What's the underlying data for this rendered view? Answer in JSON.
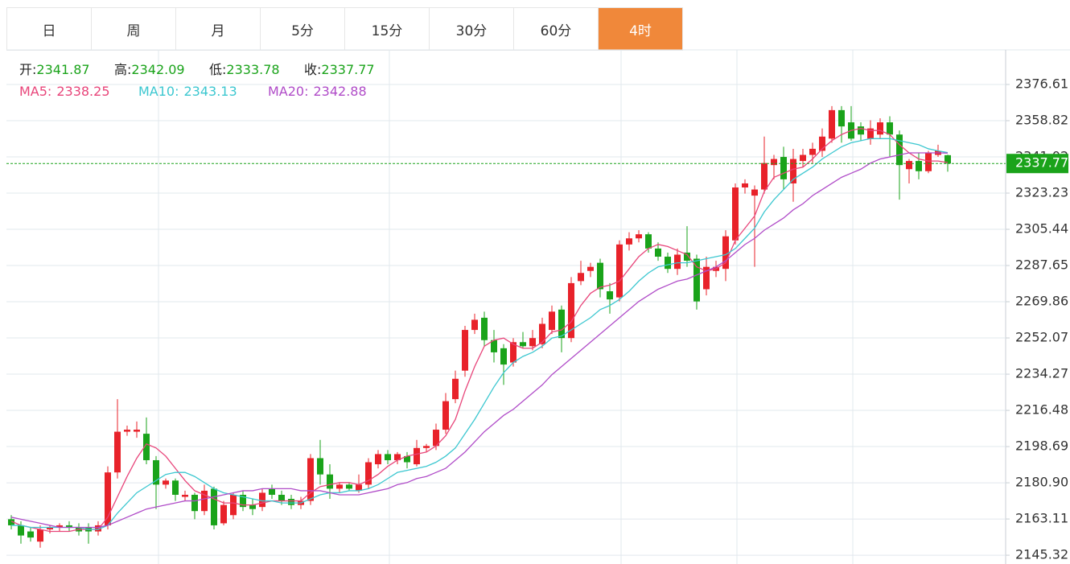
{
  "tabs": [
    "日",
    "周",
    "月",
    "5分",
    "15分",
    "30分",
    "60分",
    "4时"
  ],
  "active_tab": 7,
  "chart_data": {
    "type": "candlestick",
    "ylim": [
      2141.0,
      2393.6
    ],
    "yticks": [
      2145.32,
      2163.11,
      {
        "value": 2180.9,
        "label": "2180.90"
      },
      2198.69,
      2216.48,
      2234.27,
      2252.07,
      2269.86,
      2287.65,
      2305.44,
      2323.23,
      2341.02,
      2358.82,
      2376.61
    ],
    "up_color": "#e8222a",
    "down_color": "#1aa31a",
    "grid": true,
    "ohlc_labels": [
      "开:",
      "高:",
      "低:",
      "收:"
    ],
    "open": [
      2163,
      2160,
      2157,
      2152,
      2158,
      2159,
      2160,
      2159,
      2159,
      2157,
      2160,
      2186,
      2206,
      2206,
      2205,
      2192,
      2180,
      2182,
      2174,
      2175,
      2167,
      2178,
      2161,
      2165,
      2175,
      2170,
      2169,
      2178,
      2175,
      2173,
      2170,
      2172,
      2193,
      2185,
      2178,
      2180,
      2177,
      2180,
      2190,
      2195,
      2192,
      2194,
      2190,
      2198,
      2199,
      2207,
      2222,
      2236,
      2256,
      2262,
      2251,
      2247,
      2240,
      2250,
      2248,
      2249,
      2256,
      2266,
      2252,
      2280,
      2285,
      2289,
      2275,
      2272,
      2298,
      2301,
      2303,
      2296,
      2292,
      2286,
      2294,
      2291,
      2276,
      2285,
      2286,
      2300,
      2326,
      2322,
      2325,
      2337,
      2341,
      2328,
      2339,
      2342,
      2344,
      2350,
      2364,
      2358,
      2356,
      2350,
      2352,
      2358,
      2352,
      2335,
      2339,
      2334,
      2342,
      2341.87
    ],
    "high": [
      2165,
      2162,
      2159,
      2160,
      2160,
      2161,
      2162,
      2161,
      2161,
      2162,
      2189,
      2222,
      2209,
      2211,
      2213,
      2194,
      2183,
      2183,
      2177,
      2176,
      2180,
      2179,
      2172,
      2176,
      2177,
      2173,
      2178,
      2180,
      2177,
      2175,
      2174,
      2195,
      2202,
      2190,
      2181,
      2181,
      2185,
      2193,
      2197,
      2197,
      2196,
      2196,
      2202,
      2200,
      2210,
      2225,
      2236,
      2258,
      2264,
      2265,
      2256,
      2249,
      2252,
      2255,
      2256,
      2262,
      2268,
      2268,
      2282,
      2290,
      2289,
      2291,
      2279,
      2300,
      2304,
      2305,
      2304,
      2299,
      2294,
      2296,
      2307,
      2293,
      2292,
      2290,
      2305,
      2328,
      2330,
      2327,
      2351,
      2342,
      2346,
      2345,
      2345,
      2348,
      2355,
      2366,
      2366,
      2366,
      2358,
      2359,
      2360,
      2361,
      2354,
      2340,
      2343,
      2344,
      2347,
      2342.09
    ],
    "low": [
      2158,
      2151,
      2152,
      2149,
      2156,
      2157,
      2157,
      2155,
      2151,
      2155,
      2158,
      2183,
      2204,
      2203,
      2190,
      2168,
      2178,
      2172,
      2172,
      2163,
      2165,
      2158,
      2160,
      2163,
      2167,
      2165,
      2167,
      2173,
      2170,
      2168,
      2168,
      2170,
      2180,
      2173,
      2176,
      2177,
      2176,
      2178,
      2188,
      2190,
      2190,
      2188,
      2189,
      2196,
      2197,
      2205,
      2220,
      2233,
      2254,
      2248,
      2240,
      2229,
      2238,
      2247,
      2246,
      2247,
      2254,
      2245,
      2250,
      2278,
      2282,
      2272,
      2264,
      2270,
      2295,
      2299,
      2294,
      2290,
      2284,
      2283,
      2287,
      2266,
      2273,
      2282,
      2280,
      2298,
      2323,
      2287,
      2323,
      2330,
      2325,
      2319,
      2336,
      2338,
      2341,
      2348,
      2348,
      2349,
      2349,
      2347,
      2350,
      2341,
      2320,
      2328,
      2330,
      2333,
      2341,
      2333.78
    ],
    "close": [
      2160,
      2155,
      2154,
      2158,
      2159,
      2160,
      2159,
      2157,
      2157,
      2160,
      2186,
      2206,
      2207,
      2207,
      2192,
      2180,
      2182,
      2175,
      2175,
      2167,
      2177,
      2160,
      2170,
      2175,
      2169,
      2168,
      2176,
      2175,
      2172,
      2170,
      2172,
      2193,
      2185,
      2178,
      2180,
      2178,
      2180,
      2191,
      2195,
      2192,
      2195,
      2191,
      2198,
      2199,
      2207,
      2221,
      2232,
      2256,
      2261,
      2251,
      2245,
      2239,
      2250,
      2248,
      2252,
      2259,
      2265,
      2252,
      2279,
      2284,
      2287,
      2276,
      2271,
      2298,
      2301,
      2303,
      2296,
      2292,
      2286,
      2293,
      2290,
      2270,
      2287,
      2287,
      2302,
      2326,
      2328,
      2325,
      2338,
      2340,
      2330,
      2340,
      2342,
      2345,
      2351,
      2364,
      2356,
      2350,
      2352,
      2355,
      2358,
      2352,
      2337,
      2339,
      2334,
      2343,
      2344,
      2337.77
    ],
    "series": [
      {
        "name": "MA5:",
        "color": "#e8457a",
        "values": [
          2162,
          2160,
          2159,
          2158,
          2157,
          2157,
          2157,
          2158,
          2158,
          2158,
          2164,
          2174,
          2184,
          2193,
          2200,
          2198,
          2194,
          2188,
          2182,
          2177,
          2175,
          2173,
          2171,
          2171,
          2170,
          2170,
          2171,
          2172,
          2172,
          2172,
          2172,
          2176,
          2179,
          2180,
          2181,
          2181,
          2180,
          2182,
          2185,
          2189,
          2192,
          2194,
          2195,
          2196,
          2199,
          2204,
          2212,
          2226,
          2238,
          2248,
          2251,
          2252,
          2249,
          2247,
          2247,
          2250,
          2255,
          2256,
          2260,
          2268,
          2274,
          2277,
          2278,
          2280,
          2286,
          2292,
          2296,
          2298,
          2297,
          2295,
          2293,
          2287,
          2285,
          2286,
          2289,
          2300,
          2306,
          2312,
          2324,
          2331,
          2333,
          2335,
          2336,
          2340,
          2345,
          2349,
          2352,
          2354,
          2355,
          2354,
          2354,
          2352,
          2347,
          2343,
          2340,
          2339,
          2339,
          2338.25
        ]
      },
      {
        "name": "MA10:",
        "color": "#3cc7d0",
        "values": [
          2160,
          2160,
          2159,
          2159,
          2159,
          2159,
          2159,
          2159,
          2158,
          2158,
          2160,
          2166,
          2171,
          2176,
          2179,
          2182,
          2185,
          2186,
          2186,
          2184,
          2181,
          2178,
          2176,
          2175,
          2174,
          2173,
          2172,
          2172,
          2171,
          2171,
          2171,
          2173,
          2175,
          2176,
          2176,
          2177,
          2177,
          2178,
          2180,
          2183,
          2186,
          2187,
          2188,
          2189,
          2191,
          2194,
          2198,
          2205,
          2212,
          2220,
          2228,
          2235,
          2240,
          2243,
          2245,
          2248,
          2252,
          2253,
          2256,
          2259,
          2262,
          2266,
          2268,
          2271,
          2275,
          2280,
          2284,
          2287,
          2288,
          2289,
          2289,
          2290,
          2291,
          2292,
          2293,
          2296,
          2301,
          2306,
          2314,
          2320,
          2325,
          2330,
          2333,
          2336,
          2340,
          2343,
          2346,
          2348,
          2349,
          2350,
          2350,
          2350,
          2349,
          2348,
          2347,
          2345,
          2344,
          2343.13
        ]
      },
      {
        "name": "MA20:",
        "color": "#b04cc8",
        "values": [
          2164,
          2163,
          2162,
          2161,
          2160,
          2159,
          2159,
          2159,
          2159,
          2159,
          2160,
          2162,
          2164,
          2166,
          2168,
          2169,
          2170,
          2171,
          2172,
          2172,
          2173,
          2174,
          2175,
          2176,
          2177,
          2177,
          2178,
          2178,
          2178,
          2178,
          2177,
          2177,
          2177,
          2176,
          2175,
          2175,
          2175,
          2176,
          2177,
          2178,
          2180,
          2181,
          2183,
          2184,
          2186,
          2188,
          2192,
          2196,
          2201,
          2206,
          2210,
          2214,
          2217,
          2221,
          2225,
          2229,
          2234,
          2238,
          2242,
          2246,
          2250,
          2254,
          2258,
          2262,
          2266,
          2270,
          2273,
          2276,
          2278,
          2280,
          2281,
          2283,
          2285,
          2287,
          2290,
          2294,
          2298,
          2301,
          2305,
          2308,
          2311,
          2315,
          2318,
          2322,
          2325,
          2328,
          2331,
          2333,
          2335,
          2338,
          2340,
          2341,
          2342,
          2343,
          2343,
          2343,
          2343,
          2342.88
        ]
      }
    ]
  }
}
